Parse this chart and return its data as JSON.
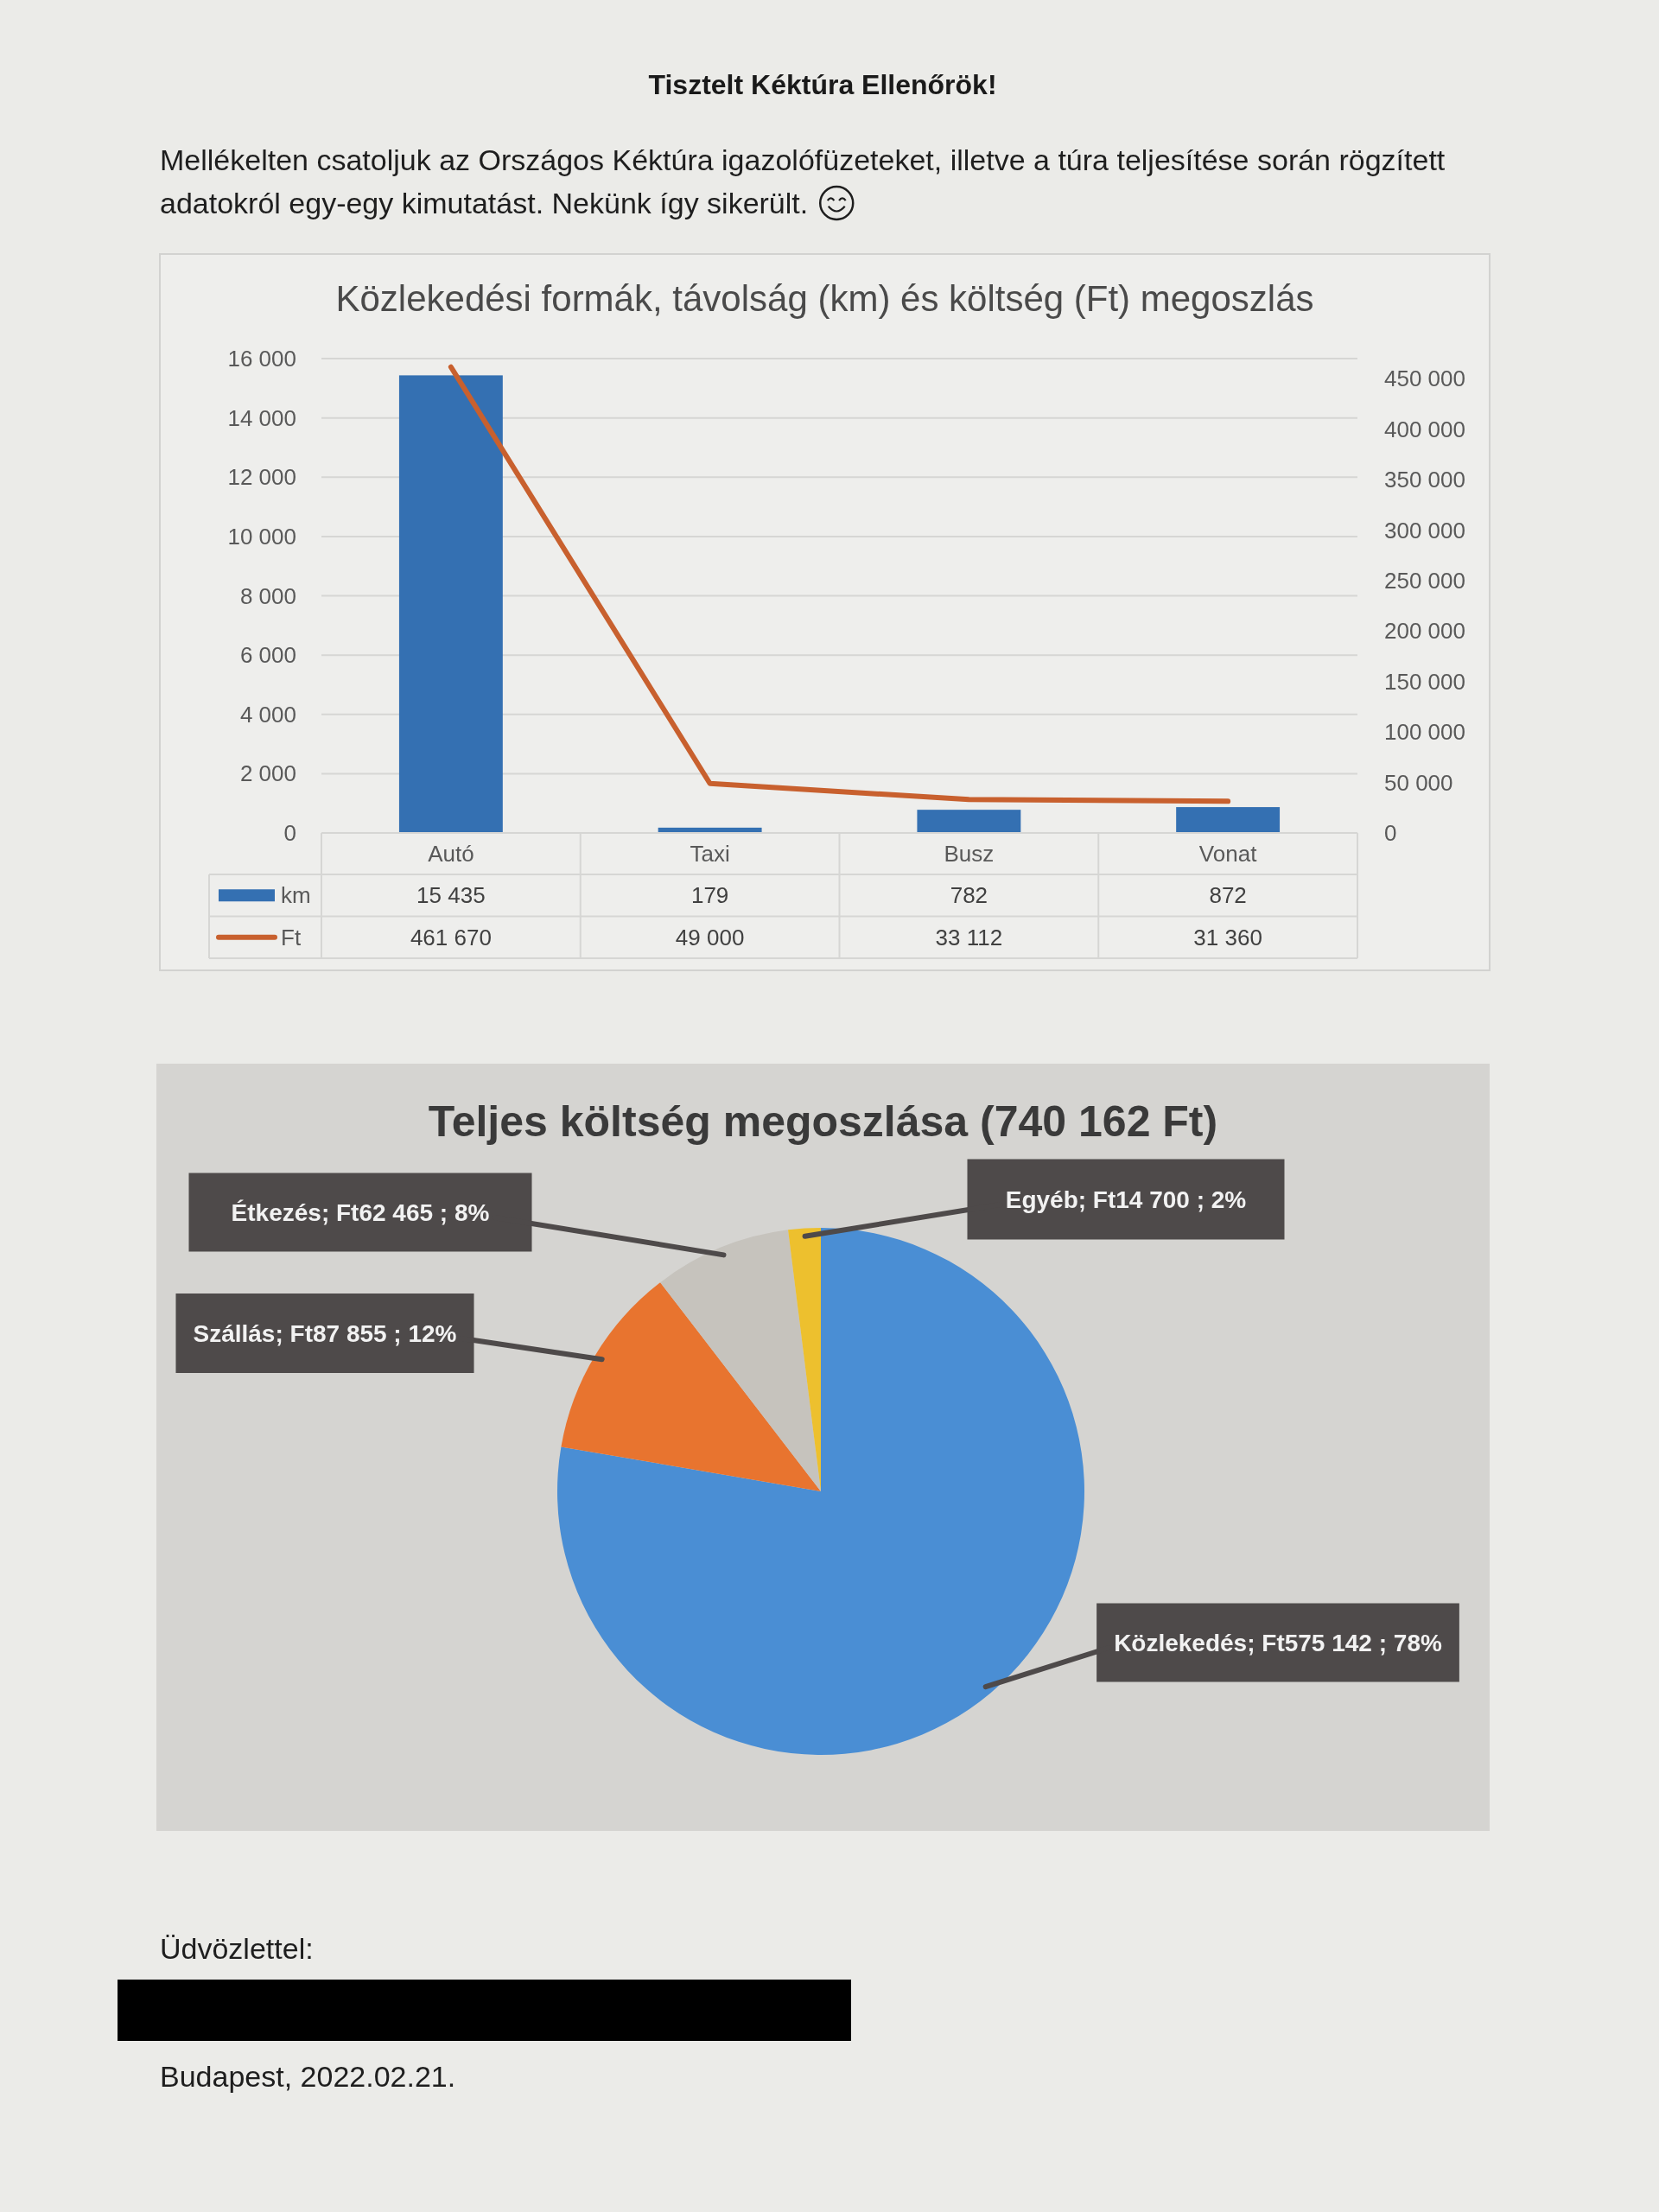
{
  "chart_data": [
    {
      "type": "other",
      "title": "Tisztelt Kéktúra Ellenőrök!",
      "annotations": [
        "Mellékelten csatoljuk az Országos Kéktúra igazolófüzeteket, illetve a túra teljesítése során rögzített adatokról egy-egy kimutatást. Nekünk így sikerült."
      ]
    },
    {
      "type": "bar",
      "title": "Közlekedési formák, távolság (km) és költség (Ft) megoszlás",
      "categories": [
        "Autó",
        "Taxi",
        "Busz",
        "Vonat"
      ],
      "series": [
        {
          "name": "km",
          "type": "bar",
          "color": "#3470b2",
          "values": [
            15435,
            179,
            782,
            872
          ],
          "value_labels": [
            "15 435",
            "179",
            "782",
            "872"
          ]
        },
        {
          "name": "Ft",
          "type": "line",
          "axis": "y2",
          "color": "#c8602e",
          "values": [
            461670,
            49000,
            33112,
            31360
          ],
          "value_labels": [
            "461 670",
            "49 000",
            "33 112",
            "31 360"
          ]
        }
      ],
      "ylim": [
        0,
        16000
      ],
      "yticks": [
        0,
        {
          "value": 2000,
          "label": "2 000"
        },
        {
          "value": 4000,
          "label": "4 000"
        },
        {
          "value": 6000,
          "label": "6 000"
        },
        {
          "value": 8000,
          "label": "8 000"
        },
        {
          "value": 10000,
          "label": "10 000"
        },
        {
          "value": 12000,
          "label": "12 000"
        },
        {
          "value": 14000,
          "label": "14 000"
        },
        {
          "value": 16000,
          "label": "16 000"
        }
      ],
      "y2lim": [
        0,
        470000
      ],
      "y2ticks": [
        0,
        {
          "value": 50000,
          "label": "50 000"
        },
        {
          "value": 100000,
          "label": "100 000"
        },
        {
          "value": 150000,
          "label": "150 000"
        },
        {
          "value": 200000,
          "label": "200 000"
        },
        {
          "value": 250000,
          "label": "250 000"
        },
        {
          "value": 300000,
          "label": "300 000"
        },
        {
          "value": 350000,
          "label": "350 000"
        },
        {
          "value": 400000,
          "label": "400 000"
        },
        {
          "value": 450000,
          "label": "450 000"
        }
      ],
      "grid": "y",
      "legend": "bottom"
    },
    {
      "type": "pie",
      "title": "Teljes költség megoszlása (740 162 Ft)",
      "categories": [
        "Közlekedés",
        "Szállás",
        "Étkezés",
        "Egyéb"
      ],
      "values": [
        575142,
        87855,
        62465,
        14700
      ],
      "colors": [
        "#4a8ed4",
        "#e8742f",
        "#c6c3bd",
        "#edc02e"
      ],
      "value_labels": [
        "Ft575 142 ; 78%",
        "Ft87 855 ; 12%",
        "Ft62 465 ; 8%",
        "Ft14 700 ; 2%"
      ]
    },
    {
      "type": "other",
      "annotations": [
        "Üdvözlettel:",
        "Budapest, 2022.02.21."
      ]
    }
  ]
}
